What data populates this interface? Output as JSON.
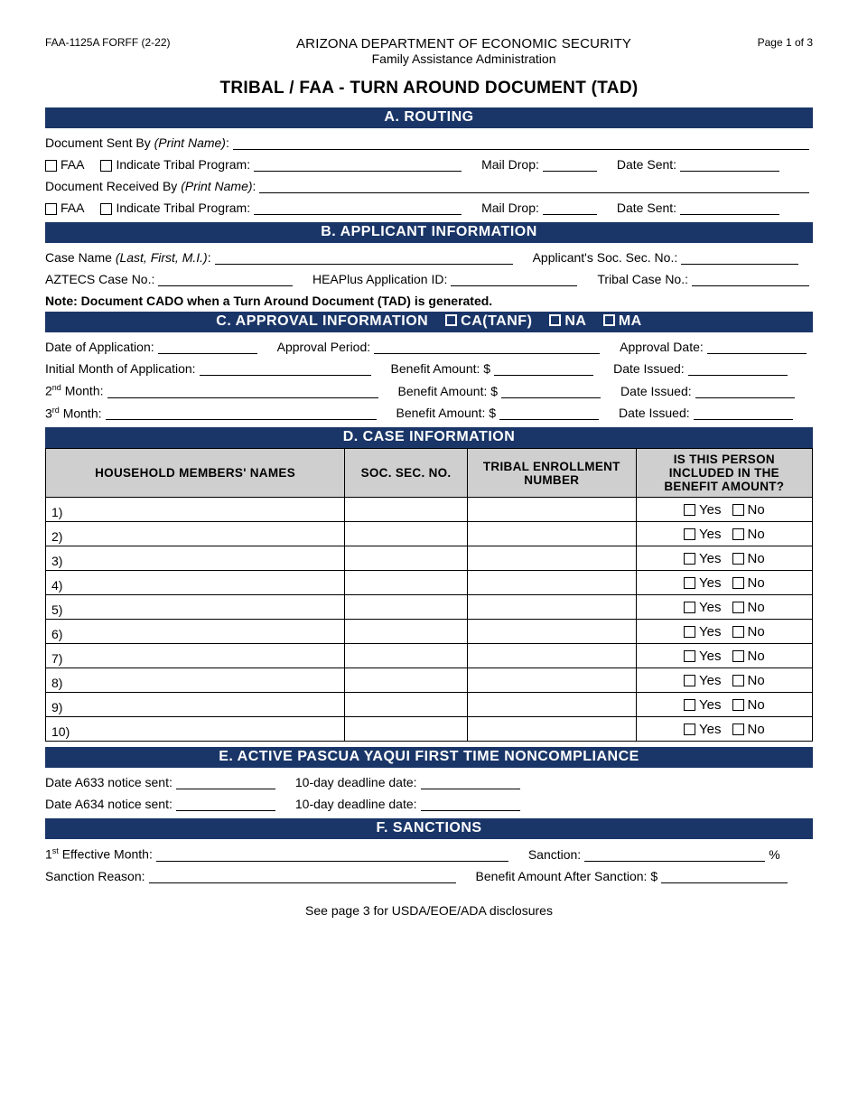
{
  "header": {
    "form_id": "FAA-1125A FORFF (2-22)",
    "agency": "ARIZONA DEPARTMENT OF ECONOMIC SECURITY",
    "subagency": "Family Assistance Administration",
    "page": "Page 1 of 3",
    "title": "TRIBAL / FAA - TURN AROUND DOCUMENT (TAD)"
  },
  "sections": {
    "a": "A. ROUTING",
    "b": "B. APPLICANT INFORMATION",
    "c": "C. APPROVAL INFORMATION",
    "c_opts": {
      "ca": "CA(TANF)",
      "na": "NA",
      "ma": "MA"
    },
    "d": "D. CASE INFORMATION",
    "e": "E. ACTIVE PASCUA YAQUI FIRST TIME NONCOMPLIANCE",
    "f": "F. SANCTIONS"
  },
  "routing": {
    "sent_by": "Document Sent By",
    "print_name": "(Print Name)",
    "faa": "FAA",
    "indicate": "Indicate Tribal Program:",
    "mail_drop": "Mail Drop:",
    "date_sent": "Date Sent:",
    "received_by": "Document Received By"
  },
  "applicant": {
    "case_name": "Case Name",
    "case_name_hint": "(Last, First, M.I.)",
    "ssn": "Applicant's Soc. Sec. No.:",
    "aztecs": "AZTECS Case No.:",
    "heaplus": "HEAPlus Application ID:",
    "tribal_case": "Tribal Case No.:",
    "note": "Note: Document CADO when a Turn Around Document (TAD) is generated."
  },
  "approval": {
    "date_app": "Date of Application:",
    "period": "Approval Period:",
    "app_date": "Approval Date:",
    "init_month": "Initial Month of Application:",
    "benefit": "Benefit Amount: $",
    "issued": "Date Issued:",
    "m2": "2",
    "m2_suf": "nd",
    "m3": "3",
    "m3_suf": "rd",
    "month": " Month:"
  },
  "case_table": {
    "columns": [
      "HOUSEHOLD MEMBERS' NAMES",
      "SOC. SEC. NO.",
      "TRIBAL ENROLLMENT NUMBER",
      "IS THIS PERSON INCLUDED IN THE BENEFIT AMOUNT?"
    ],
    "rows": [
      "1)",
      "2)",
      "3)",
      "4)",
      "5)",
      "6)",
      "7)",
      "8)",
      "9)",
      "10)"
    ],
    "yes": "Yes",
    "no": "No"
  },
  "pascua": {
    "a633": "Date A633 notice sent:",
    "a634": "Date A634 notice sent:",
    "deadline": "10-day deadline date:"
  },
  "sanctions": {
    "first_month_pre": "1",
    "first_month_suf": "st",
    "first_month": " Effective Month:",
    "sanction": "Sanction:",
    "pct": "%",
    "reason": "Sanction Reason:",
    "after": "Benefit Amount After Sanction: $"
  },
  "footer": "See page 3 for USDA/EOE/ADA disclosures",
  "colors": {
    "bar_bg": "#1a3668",
    "th_bg": "#cfcfcf"
  }
}
